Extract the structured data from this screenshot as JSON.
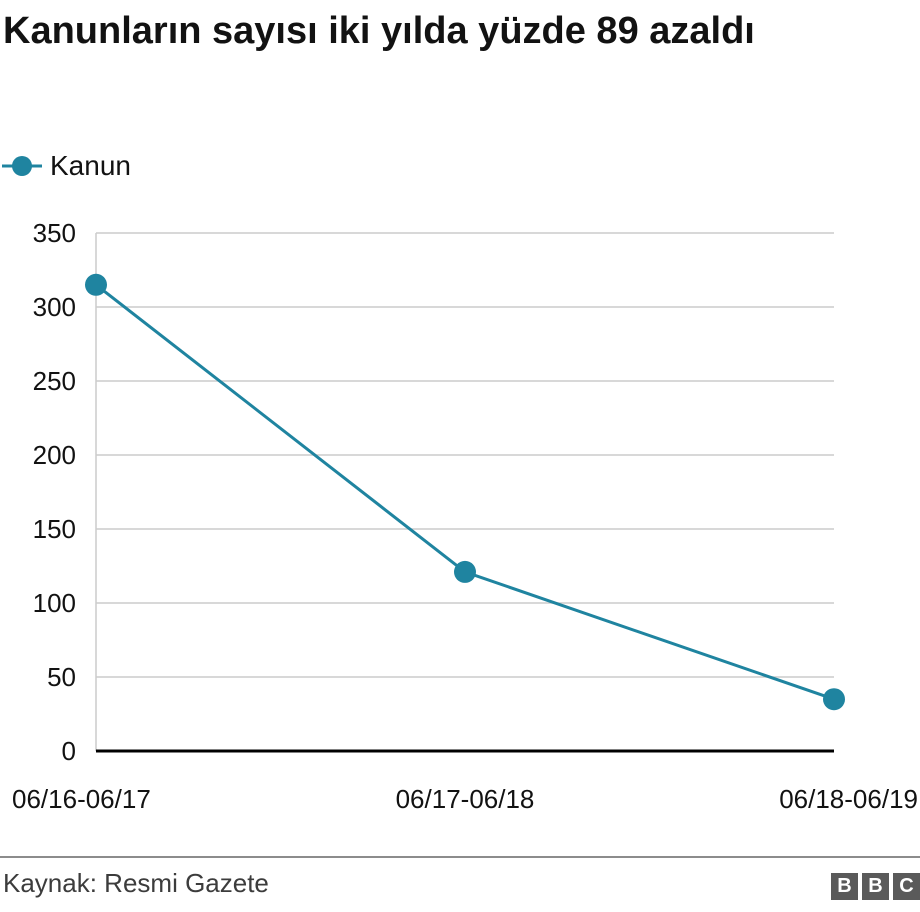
{
  "chart_data": {
    "type": "line",
    "title": "Kanunların sayısı iki yılda yüzde 89 azaldı",
    "categories": [
      "06/16-06/17",
      "06/17-06/18",
      "06/18-06/19"
    ],
    "series": [
      {
        "name": "Kanun",
        "values": [
          315,
          121,
          35
        ],
        "color": "#1f84a0"
      }
    ],
    "yticks": [
      0,
      50,
      100,
      150,
      200,
      250,
      300,
      350
    ],
    "ylim": [
      0,
      350
    ],
    "xlabel": "",
    "ylabel": "",
    "grid": true,
    "legend_position": "top-left"
  },
  "footer": {
    "source": "Kaynak: Resmi Gazete",
    "logo_letters": [
      "B",
      "B",
      "C"
    ]
  }
}
